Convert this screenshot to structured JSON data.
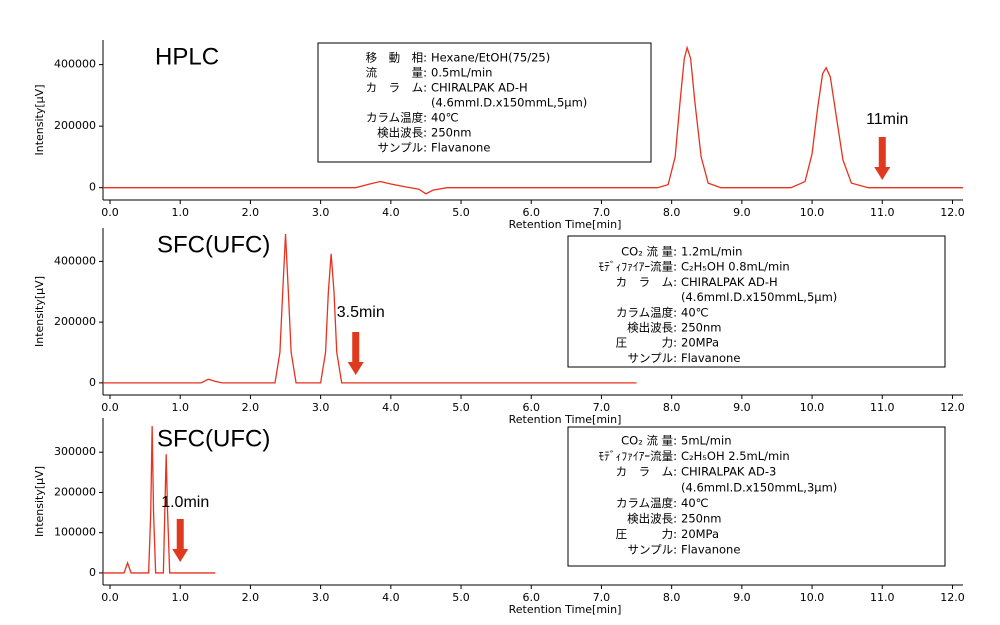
{
  "chart_data": [
    {
      "type": "line",
      "title": "HPLC",
      "xlabel": "Retention Time[min]",
      "ylabel": "Intensity[μV]",
      "color": "#e8321e",
      "x": [
        -0.1,
        3.5,
        3.7,
        3.85,
        4.0,
        4.2,
        4.4,
        4.5,
        4.6,
        4.8,
        7.8,
        7.95,
        8.05,
        8.12,
        8.18,
        8.22,
        8.27,
        8.33,
        8.42,
        8.52,
        8.7,
        9.7,
        9.9,
        10.0,
        10.08,
        10.15,
        10.2,
        10.26,
        10.34,
        10.44,
        10.56,
        10.8,
        12.15
      ],
      "values": [
        0,
        0,
        12000,
        20000,
        12000,
        3000,
        -5000,
        -20000,
        -8000,
        0,
        0,
        10000,
        100000,
        280000,
        420000,
        455000,
        420000,
        280000,
        100000,
        15000,
        0,
        0,
        20000,
        110000,
        260000,
        370000,
        390000,
        360000,
        240000,
        90000,
        15000,
        0,
        0
      ],
      "xlim": [
        -0.1,
        12.15
      ],
      "ylim": [
        -40000,
        480000
      ],
      "xticks": [
        {
          "value": 0,
          "label": "0.0"
        },
        {
          "value": 1,
          "label": "1.0"
        },
        {
          "value": 2,
          "label": "2.0"
        },
        {
          "value": 3,
          "label": "3.0"
        },
        {
          "value": 4,
          "label": "4.0"
        },
        {
          "value": 5,
          "label": "5.0"
        },
        {
          "value": 6,
          "label": "6.0"
        },
        {
          "value": 7,
          "label": "7.0"
        },
        {
          "value": 8,
          "label": "8.0"
        },
        {
          "value": 9,
          "label": "9.0"
        },
        {
          "value": 10,
          "label": "10.0"
        },
        {
          "value": 11,
          "label": "11.0"
        },
        {
          "value": 12,
          "label": "12.0"
        }
      ],
      "yticks": [
        0,
        200000,
        400000
      ],
      "annotation": {
        "text": "11min",
        "x": 11
      },
      "info_box": [
        {
          "label": "移　動　相:",
          "value": "Hexane/EtOH(75/25)"
        },
        {
          "label": "流　　　量:",
          "value": "0.5mL/min"
        },
        {
          "label": "カ　ラ　ム:",
          "value": "CHIRALPAK AD-H"
        },
        {
          "value": "(4.6mmI.D.x150mmL,5μm)"
        },
        {
          "label": "カラム温度:",
          "value": "40℃"
        },
        {
          "label": "検出波長:",
          "value": "250nm"
        },
        {
          "label": "サンプル:",
          "value": "Flavanone"
        }
      ]
    },
    {
      "type": "line",
      "title": "SFC(UFC)",
      "xlabel": "Retention Time[min]",
      "ylabel": "Intensity[μV]",
      "color": "#e8321e",
      "x": [
        -0.1,
        1.3,
        1.4,
        1.5,
        1.6,
        2.35,
        2.42,
        2.46,
        2.5,
        2.54,
        2.58,
        2.65,
        3.0,
        3.07,
        3.11,
        3.15,
        3.19,
        3.23,
        3.3,
        7.5
      ],
      "values": [
        0,
        0,
        12000,
        5000,
        0,
        0,
        100000,
        300000,
        490000,
        300000,
        100000,
        0,
        0,
        100000,
        300000,
        425000,
        300000,
        100000,
        0,
        0
      ],
      "xlim": [
        -0.1,
        12.15
      ],
      "ylim": [
        -40000,
        510000
      ],
      "xticks": [
        {
          "value": 0,
          "label": "0.0"
        },
        {
          "value": 1,
          "label": "1.0"
        },
        {
          "value": 2,
          "label": "2.0"
        },
        {
          "value": 3,
          "label": "3.0"
        },
        {
          "value": 4,
          "label": "4.0"
        },
        {
          "value": 5,
          "label": "5.0"
        },
        {
          "value": 6,
          "label": "6.0"
        },
        {
          "value": 7,
          "label": "7.0"
        },
        {
          "value": 8,
          "label": "8.0"
        },
        {
          "value": 9,
          "label": "9.0"
        },
        {
          "value": 10,
          "label": "10.0"
        },
        {
          "value": 11,
          "label": "11.0"
        },
        {
          "value": 12,
          "label": "12.0"
        }
      ],
      "yticks": [
        0,
        200000,
        400000
      ],
      "annotation": {
        "text": "3.5min",
        "x": 3.5
      },
      "info_box": [
        {
          "label": "CO₂ 流 量:",
          "value": "1.2mL/min"
        },
        {
          "label": "ﾓﾃﾞｨﾌｧｲｱｰ流量:",
          "value": "C₂H₅OH 0.8mL/min"
        },
        {
          "label": "カ　ラ　ム:",
          "value": "CHIRALPAK AD-H"
        },
        {
          "value": "(4.6mmI.D.x150mmL,5μm)"
        },
        {
          "label": "カラム温度:",
          "value": "40℃"
        },
        {
          "label": "検出波長:",
          "value": "250nm"
        },
        {
          "label": "圧　　　力:",
          "value": "20MPa"
        },
        {
          "label": "サンプル:",
          "value": "Flavanone"
        }
      ]
    },
    {
      "type": "line",
      "title": "SFC(UFC)",
      "xlabel": "Retention Time[min]",
      "ylabel": "Intensity[μV]",
      "color": "#e8321e",
      "x": [
        -0.1,
        0.2,
        0.25,
        0.3,
        0.55,
        0.58,
        0.6,
        0.62,
        0.65,
        0.76,
        0.78,
        0.8,
        0.82,
        0.85,
        1.5
      ],
      "values": [
        0,
        0,
        25000,
        0,
        0,
        150000,
        365000,
        150000,
        0,
        0,
        150000,
        295000,
        150000,
        0,
        0
      ],
      "xlim": [
        -0.1,
        12.15
      ],
      "ylim": [
        -30000,
        385000
      ],
      "xticks": [
        {
          "value": 0,
          "label": "0.0"
        },
        {
          "value": 1,
          "label": "1.0"
        },
        {
          "value": 2,
          "label": "2.0"
        },
        {
          "value": 3,
          "label": "3.0"
        },
        {
          "value": 4,
          "label": "4.0"
        },
        {
          "value": 5,
          "label": "5.0"
        },
        {
          "value": 6,
          "label": "6.0"
        },
        {
          "value": 7,
          "label": "7.0"
        },
        {
          "value": 8,
          "label": "8.0"
        },
        {
          "value": 9,
          "label": "9.0"
        },
        {
          "value": 10,
          "label": "10.0"
        },
        {
          "value": 11,
          "label": "11.0"
        },
        {
          "value": 12,
          "label": "12.0"
        }
      ],
      "yticks": [
        0,
        100000,
        200000,
        300000
      ],
      "annotation": {
        "text": "1.0min",
        "x": 1
      },
      "info_box": [
        {
          "label": "CO₂ 流 量:",
          "value": "5mL/min"
        },
        {
          "label": "ﾓﾃﾞｨﾌｧｲｱｰ流量:",
          "value": "C₂H₅OH 2.5mL/min"
        },
        {
          "label": "カ　ラ　ム:",
          "value": "CHIRALPAK AD-3"
        },
        {
          "value": "(4.6mmI.D.x150mmL,3μm)"
        },
        {
          "label": "カラム温度:",
          "value": "40℃"
        },
        {
          "label": "検出波長:",
          "value": "250nm"
        },
        {
          "label": "圧　　　力:",
          "value": "20MPa"
        },
        {
          "label": "サンプル:",
          "value": "Flavanone"
        }
      ]
    }
  ]
}
